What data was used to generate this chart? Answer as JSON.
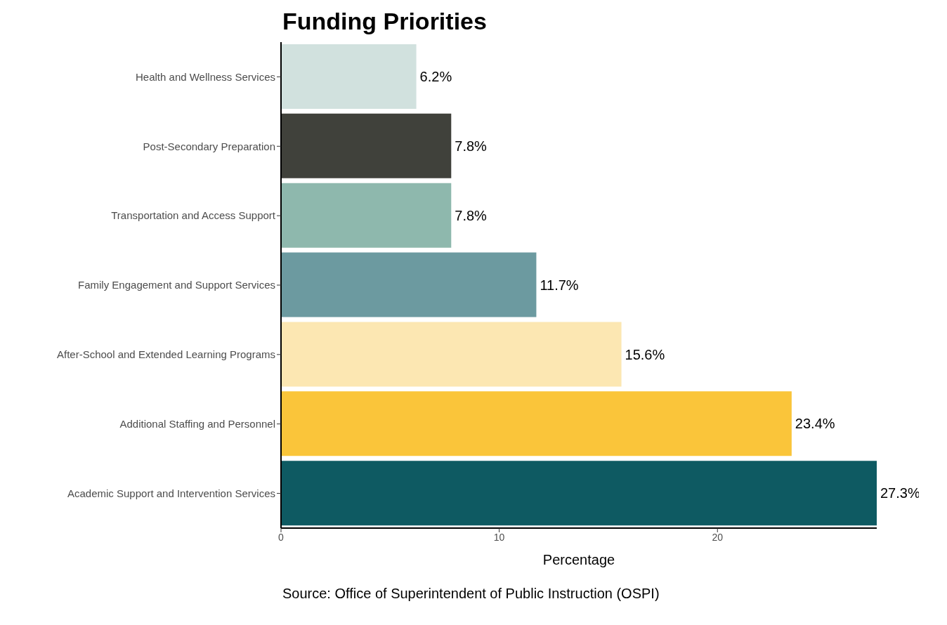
{
  "chart_data": {
    "type": "bar",
    "orientation": "horizontal",
    "title": "Funding Priorities",
    "xlabel": "Percentage",
    "annotations": [
      "Source: Office of Superintendent of Public Instruction (OSPI)"
    ],
    "categories": [
      "Health and Wellness Services",
      "Post-Secondary Preparation",
      "Transportation and Access Support",
      "Family Engagement and Support Services",
      "After-School and Extended Learning Programs",
      "Additional Staffing and Personnel",
      "Academic Support and Intervention Services"
    ],
    "values": [
      6.2,
      7.8,
      7.8,
      11.7,
      15.6,
      23.4,
      27.3
    ],
    "colors": [
      "#d1e1de",
      "#40413b",
      "#8eb8ad",
      "#6c9aa0",
      "#fce7b2",
      "#fac53a",
      "#0e5a62"
    ],
    "value_labels": [
      "6.2%",
      "7.8%",
      "7.8%",
      "11.7%",
      "15.6%",
      "23.4%",
      "27.3%"
    ],
    "xlim": [
      0,
      27.3
    ],
    "xticks": [
      0,
      10,
      20
    ],
    "grid": false
  }
}
